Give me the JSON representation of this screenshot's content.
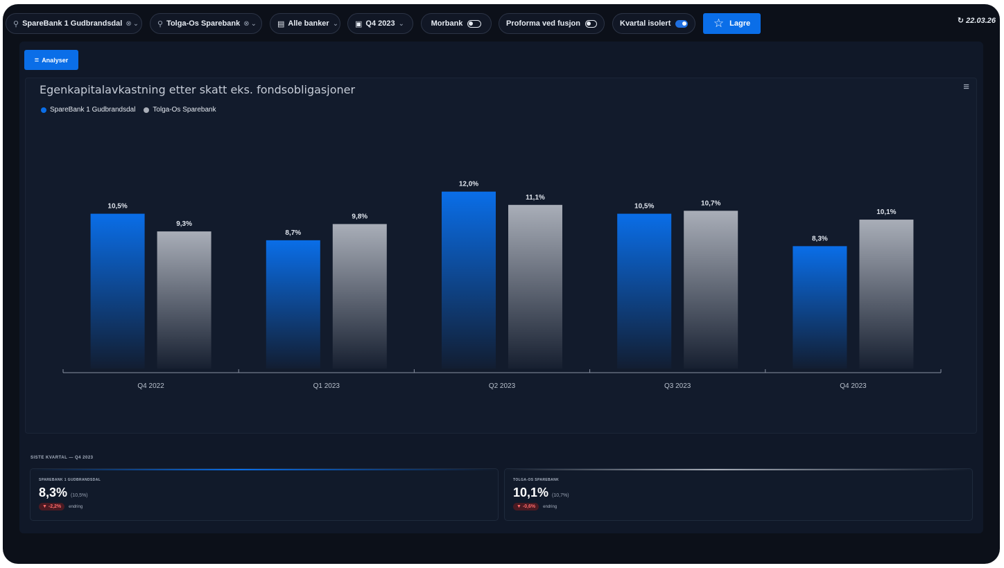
{
  "toolbar": {
    "bank1": {
      "label": "SpareBank 1 Gudbrandsdal",
      "icon": "search-icon"
    },
    "bank2": {
      "label": "Tolga-Os Sparebank",
      "icon": "search-icon"
    },
    "group": {
      "label": "Alle banker",
      "icon": "table-icon"
    },
    "period": {
      "label": "Q4 2023",
      "icon": "calendar-icon"
    },
    "parent_bank": {
      "label": "Morbank",
      "on": false
    },
    "proforma": {
      "label": "Proforma ved fusjon",
      "on": false
    },
    "quarter_isolated": {
      "label": "Kvartal isolert",
      "on": true
    },
    "save_label": "Lagre",
    "timestamp": "22.03.26"
  },
  "analyze_label": "Analyser",
  "chart_data": {
    "type": "bar",
    "title": "Egenkapitalavkastning etter skatt eks. fondsobligasjoner",
    "categories": [
      "Q4 2022",
      "Q1 2023",
      "Q2 2023",
      "Q3 2023",
      "Q4 2023"
    ],
    "series": [
      {
        "name": "SpareBank 1 Gudbrandsdal",
        "values": [
          10.5,
          8.7,
          12.0,
          10.5,
          8.3
        ],
        "labels": [
          "10,5%",
          "8,7%",
          "12,0%",
          "10,5%",
          "8,3%"
        ],
        "color": "#0a6ee8"
      },
      {
        "name": "Tolga-Os Sparebank",
        "values": [
          9.3,
          9.8,
          11.1,
          10.7,
          10.1
        ],
        "labels": [
          "9,3%",
          "9,8%",
          "11,1%",
          "10,7%",
          "10,1%"
        ],
        "color": "#a9aeb8"
      }
    ],
    "ylim": [
      0,
      16.4
    ],
    "legend_position": "top-left",
    "grid": false
  },
  "latest": {
    "label": "SISTE KVARTAL — Q4 2023",
    "cards": [
      {
        "name": "SPAREBANK 1 GUDBRANDSDAL",
        "value": "8,3%",
        "previous": "(10,5%)",
        "change": "▼ -2,2%",
        "change_label": "endring",
        "accent": "#0a6ee8"
      },
      {
        "name": "TOLGA-OS SPAREBANK",
        "value": "10,1%",
        "previous": "(10,7%)",
        "change": "▼ -0,6%",
        "change_label": "endring",
        "accent": "#a9aeb8"
      }
    ]
  }
}
